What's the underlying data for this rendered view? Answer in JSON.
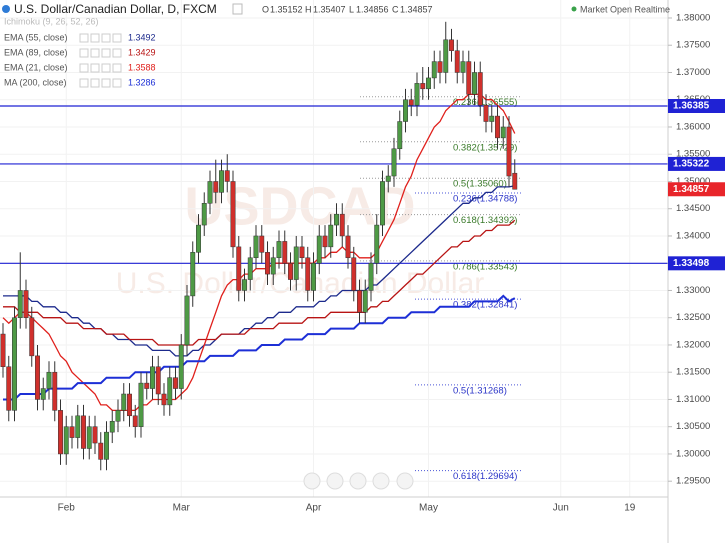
{
  "chart_data": {
    "type": "candlestick",
    "title": "U.S. Dollar/Canadian Dollar, D, FXCM",
    "status": "Market Open Realtime",
    "ohlc_labels": [
      "O",
      "H",
      "L",
      "C"
    ],
    "ichimoku_label": "Ichimoku (9, 26, 52, 26)",
    "watermark": [
      "USDCAD",
      "U.S. Dollar/Canadian Dollar"
    ],
    "up_color": "#4e9a45",
    "down_color": "#d0302c",
    "categories": [
      null,
      null,
      null,
      null,
      null,
      null,
      null,
      null,
      null,
      null,
      null,
      "Feb",
      null,
      null,
      null,
      null,
      null,
      null,
      null,
      null,
      null,
      null,
      null,
      null,
      null,
      null,
      null,
      null,
      null,
      null,
      null,
      "Mar",
      null,
      null,
      null,
      null,
      null,
      null,
      null,
      null,
      null,
      null,
      null,
      null,
      null,
      null,
      null,
      null,
      null,
      null,
      null,
      null,
      null,
      null,
      "Apr",
      null,
      null,
      null,
      null,
      null,
      null,
      null,
      null,
      null,
      null,
      null,
      null,
      null,
      null,
      null,
      null,
      null,
      null,
      null,
      "May",
      null,
      null,
      null,
      null,
      null,
      null,
      null,
      null,
      null,
      null,
      null,
      null,
      null,
      null,
      null,
      null,
      null,
      null,
      null,
      null,
      null,
      null,
      "Jun",
      null,
      null,
      null,
      null,
      null,
      null,
      null,
      null,
      null,
      null,
      null,
      "19"
    ],
    "open": [
      1.322,
      1.316,
      1.308,
      1.325,
      1.33,
      1.325,
      1.318,
      1.31,
      1.312,
      1.315,
      1.308,
      1.3,
      1.305,
      1.303,
      1.307,
      1.301,
      1.305,
      1.302,
      1.299,
      1.304,
      1.306,
      1.308,
      1.311,
      1.307,
      1.305,
      1.313,
      1.312,
      1.316,
      1.311,
      1.309,
      1.314,
      1.312,
      1.32,
      1.329,
      1.337,
      1.342,
      1.346,
      1.35,
      1.348,
      1.352,
      1.35,
      1.338,
      1.33,
      1.332,
      1.336,
      1.34,
      1.337,
      1.333,
      1.336,
      1.339,
      1.335,
      1.332,
      1.338,
      1.336,
      1.33,
      1.335,
      1.34,
      1.338,
      1.342,
      1.344,
      1.34,
      1.336,
      1.33,
      1.326,
      1.33,
      1.335,
      1.342,
      1.35,
      1.351,
      1.356,
      1.361,
      1.365,
      1.364,
      1.368,
      1.367,
      1.369,
      1.372,
      1.37,
      1.376,
      1.374,
      1.37,
      1.372,
      1.366,
      1.37,
      1.364,
      1.361,
      1.362,
      1.358,
      1.36,
      1.35152,
      null,
      null,
      null,
      null,
      null,
      null,
      null,
      null,
      null,
      null,
      null,
      null,
      null,
      null,
      null,
      null,
      null,
      null,
      null,
      null
    ],
    "high": [
      1.324,
      1.318,
      1.327,
      1.337,
      1.332,
      1.327,
      1.32,
      1.314,
      1.317,
      1.317,
      1.31,
      1.307,
      1.307,
      1.309,
      1.309,
      1.307,
      1.307,
      1.304,
      1.306,
      1.308,
      1.31,
      1.313,
      1.313,
      1.309,
      1.315,
      1.315,
      1.318,
      1.318,
      1.313,
      1.316,
      1.316,
      1.322,
      1.331,
      1.339,
      1.344,
      1.348,
      1.352,
      1.354,
      1.354,
      1.355,
      1.352,
      1.34,
      1.334,
      1.338,
      1.342,
      1.342,
      1.339,
      1.338,
      1.341,
      1.341,
      1.337,
      1.34,
      1.34,
      1.338,
      1.337,
      1.342,
      1.342,
      1.344,
      1.346,
      1.346,
      1.342,
      1.338,
      1.332,
      1.332,
      1.337,
      1.344,
      1.352,
      1.353,
      1.358,
      1.363,
      1.367,
      1.367,
      1.37,
      1.371,
      1.371,
      1.374,
      1.374,
      1.3793,
      1.378,
      1.376,
      1.374,
      1.374,
      1.372,
      1.372,
      1.366,
      1.364,
      1.364,
      1.362,
      1.362,
      1.35407,
      null,
      null,
      null,
      null,
      null,
      null,
      null,
      null,
      null,
      null,
      null,
      null,
      null,
      null,
      null,
      null,
      null,
      null,
      null,
      null
    ],
    "low": [
      1.314,
      1.306,
      1.306,
      1.323,
      1.323,
      1.316,
      1.308,
      1.308,
      1.31,
      1.306,
      1.298,
      1.298,
      1.301,
      1.301,
      1.299,
      1.299,
      1.3,
      1.297,
      1.297,
      1.302,
      1.304,
      1.306,
      1.305,
      1.303,
      1.303,
      1.31,
      1.31,
      1.309,
      1.307,
      1.307,
      1.31,
      1.31,
      1.318,
      1.327,
      1.335,
      1.34,
      1.344,
      1.346,
      1.346,
      1.348,
      1.336,
      1.328,
      1.328,
      1.33,
      1.334,
      1.335,
      1.331,
      1.331,
      1.334,
      1.333,
      1.33,
      1.33,
      1.334,
      1.328,
      1.328,
      1.333,
      1.336,
      1.336,
      1.34,
      1.338,
      1.334,
      1.328,
      1.324,
      1.324,
      1.328,
      1.333,
      1.34,
      1.348,
      1.349,
      1.354,
      1.359,
      1.362,
      1.362,
      1.365,
      1.365,
      1.367,
      1.368,
      1.368,
      1.372,
      1.368,
      1.368,
      1.364,
      1.364,
      1.362,
      1.359,
      1.359,
      1.356,
      1.356,
      1.349,
      1.34856,
      null,
      null,
      null,
      null,
      null,
      null,
      null,
      null,
      null,
      null,
      null,
      null,
      null,
      null,
      null,
      null,
      null,
      null,
      null,
      null
    ],
    "close": [
      1.316,
      1.308,
      1.325,
      1.33,
      1.325,
      1.318,
      1.31,
      1.312,
      1.315,
      1.308,
      1.3,
      1.305,
      1.303,
      1.307,
      1.301,
      1.305,
      1.302,
      1.299,
      1.304,
      1.306,
      1.308,
      1.311,
      1.307,
      1.305,
      1.313,
      1.312,
      1.316,
      1.311,
      1.309,
      1.314,
      1.312,
      1.32,
      1.329,
      1.337,
      1.342,
      1.346,
      1.35,
      1.348,
      1.352,
      1.35,
      1.338,
      1.33,
      1.332,
      1.336,
      1.34,
      1.337,
      1.333,
      1.336,
      1.339,
      1.335,
      1.332,
      1.338,
      1.336,
      1.33,
      1.335,
      1.34,
      1.338,
      1.342,
      1.344,
      1.34,
      1.336,
      1.33,
      1.326,
      1.33,
      1.335,
      1.342,
      1.35,
      1.351,
      1.356,
      1.361,
      1.365,
      1.364,
      1.368,
      1.367,
      1.369,
      1.372,
      1.37,
      1.376,
      1.374,
      1.37,
      1.372,
      1.366,
      1.37,
      1.364,
      1.361,
      1.362,
      1.358,
      1.36,
      1.351,
      1.34857,
      null,
      null,
      null,
      null,
      null,
      null,
      null,
      null,
      null,
      null,
      null,
      null,
      null,
      null,
      null,
      null,
      null,
      null,
      null,
      null
    ],
    "series": [
      {
        "name": "EMA (55, close)",
        "color": "#1c2a8c",
        "width": 1.3,
        "values": [
          1.329,
          1.329,
          1.329,
          1.329,
          1.329,
          1.328,
          1.328,
          1.327,
          1.327,
          1.327,
          1.326,
          1.326,
          1.325,
          1.325,
          1.324,
          1.324,
          1.323,
          1.323,
          1.322,
          1.322,
          1.321,
          1.321,
          1.321,
          1.32,
          1.32,
          1.32,
          1.319,
          1.319,
          1.319,
          1.319,
          1.318,
          1.318,
          1.318,
          1.319,
          1.319,
          1.32,
          1.32,
          1.321,
          1.322,
          1.322,
          1.322,
          1.322,
          1.323,
          1.323,
          1.324,
          1.324,
          1.325,
          1.325,
          1.326,
          1.326,
          1.326,
          1.327,
          1.327,
          1.327,
          1.327,
          1.328,
          1.328,
          1.329,
          1.329,
          1.33,
          1.33,
          1.33,
          1.33,
          1.33,
          1.331,
          1.331,
          1.332,
          1.333,
          1.334,
          1.335,
          1.336,
          1.337,
          1.338,
          1.339,
          1.34,
          1.341,
          1.342,
          1.343,
          1.344,
          1.345,
          1.346,
          1.346,
          1.347,
          1.347,
          1.348,
          1.348,
          1.349,
          1.349,
          1.349,
          1.3492,
          null,
          null,
          null,
          null,
          null,
          null,
          null,
          null,
          null,
          null,
          null,
          null,
          null,
          null,
          null,
          null,
          null,
          null,
          null,
          null
        ]
      },
      {
        "name": "EMA (89, close)",
        "color": "#b81414",
        "width": 1.3,
        "values": [
          1.327,
          1.327,
          1.327,
          1.326,
          1.326,
          1.326,
          1.326,
          1.325,
          1.325,
          1.325,
          1.325,
          1.324,
          1.324,
          1.324,
          1.323,
          1.323,
          1.323,
          1.323,
          1.322,
          1.322,
          1.322,
          1.322,
          1.321,
          1.321,
          1.321,
          1.321,
          1.321,
          1.32,
          1.32,
          1.32,
          1.32,
          1.32,
          1.32,
          1.32,
          1.321,
          1.321,
          1.321,
          1.321,
          1.322,
          1.322,
          1.322,
          1.322,
          1.322,
          1.323,
          1.323,
          1.323,
          1.323,
          1.323,
          1.324,
          1.324,
          1.324,
          1.324,
          1.324,
          1.325,
          1.325,
          1.325,
          1.325,
          1.326,
          1.326,
          1.326,
          1.326,
          1.326,
          1.326,
          1.326,
          1.327,
          1.327,
          1.328,
          1.328,
          1.329,
          1.33,
          1.331,
          1.332,
          1.333,
          1.333,
          1.334,
          1.335,
          1.336,
          1.337,
          1.338,
          1.338,
          1.339,
          1.339,
          1.34,
          1.34,
          1.341,
          1.341,
          1.342,
          1.342,
          1.342,
          1.3429,
          null,
          null,
          null,
          null,
          null,
          null,
          null,
          null,
          null,
          null,
          null,
          null,
          null,
          null,
          null,
          null,
          null,
          null,
          null,
          null
        ]
      },
      {
        "name": "EMA (21, close)",
        "color": "#e0201c",
        "width": 1.3,
        "values": [
          1.325,
          1.324,
          1.325,
          1.326,
          1.326,
          1.325,
          1.324,
          1.323,
          1.322,
          1.32,
          1.318,
          1.317,
          1.315,
          1.314,
          1.313,
          1.312,
          1.311,
          1.309,
          1.309,
          1.308,
          1.308,
          1.308,
          1.308,
          1.308,
          1.309,
          1.309,
          1.31,
          1.31,
          1.31,
          1.31,
          1.31,
          1.311,
          1.312,
          1.314,
          1.317,
          1.32,
          1.323,
          1.326,
          1.329,
          1.331,
          1.332,
          1.332,
          1.333,
          1.333,
          1.334,
          1.334,
          1.334,
          1.335,
          1.335,
          1.335,
          1.335,
          1.335,
          1.335,
          1.335,
          1.335,
          1.336,
          1.336,
          1.337,
          1.337,
          1.338,
          1.337,
          1.337,
          1.336,
          1.336,
          1.336,
          1.337,
          1.339,
          1.341,
          1.343,
          1.346,
          1.349,
          1.351,
          1.354,
          1.356,
          1.358,
          1.36,
          1.361,
          1.363,
          1.364,
          1.365,
          1.365,
          1.366,
          1.366,
          1.366,
          1.365,
          1.365,
          1.364,
          1.363,
          1.361,
          1.3588,
          null,
          null,
          null,
          null,
          null,
          null,
          null,
          null,
          null,
          null,
          null,
          null,
          null,
          null,
          null,
          null,
          null,
          null,
          null,
          null
        ]
      },
      {
        "name": "MA (200, close)",
        "color": "#1d2fd6",
        "width": 2,
        "values": [
          1.31,
          1.31,
          1.31,
          1.311,
          1.311,
          1.311,
          1.311,
          1.311,
          1.312,
          1.312,
          1.312,
          1.312,
          1.312,
          1.313,
          1.313,
          1.313,
          1.313,
          1.313,
          1.314,
          1.314,
          1.314,
          1.314,
          1.314,
          1.315,
          1.315,
          1.315,
          1.315,
          1.315,
          1.316,
          1.316,
          1.316,
          1.316,
          1.317,
          1.317,
          1.317,
          1.317,
          1.318,
          1.318,
          1.318,
          1.318,
          1.318,
          1.319,
          1.319,
          1.319,
          1.319,
          1.32,
          1.32,
          1.32,
          1.32,
          1.321,
          1.321,
          1.321,
          1.321,
          1.322,
          1.322,
          1.322,
          1.322,
          1.323,
          1.323,
          1.323,
          1.323,
          1.323,
          1.324,
          1.324,
          1.324,
          1.324,
          1.324,
          1.325,
          1.325,
          1.325,
          1.325,
          1.326,
          1.326,
          1.326,
          1.326,
          1.326,
          1.327,
          1.327,
          1.327,
          1.327,
          1.327,
          1.327,
          1.328,
          1.328,
          1.328,
          1.328,
          1.328,
          1.329,
          1.328,
          1.3286,
          null,
          null,
          null,
          null,
          null,
          null,
          null,
          null,
          null,
          null,
          null,
          null,
          null,
          null,
          null,
          null,
          null,
          null,
          null,
          null
        ]
      }
    ],
    "fib_sets": [
      {
        "color": "#3a7a2a",
        "line_color": "#9a9a9a",
        "levels": [
          {
            "label": "0.236(1.36555)",
            "value": 1.36555
          },
          {
            "label": "0.382(1.35729)",
            "value": 1.35729
          },
          {
            "label": "0.5(1.35060)",
            "value": 1.3506
          },
          {
            "label": "0.618(1.34392)",
            "value": 1.34392
          },
          {
            "label": "0.786(1.33543)",
            "value": 1.33543
          }
        ]
      },
      {
        "color": "#2b35c8",
        "line_color": "#4a55d8",
        "levels": [
          {
            "label": "0.236(1.34788)",
            "value": 1.34788
          },
          {
            "label": "0.382(1.32841)",
            "value": 1.32841
          },
          {
            "label": "0.5(1.31268)",
            "value": 1.31268
          },
          {
            "label": "0.618(1.29694)",
            "value": 1.29694
          }
        ]
      }
    ],
    "hlines": [
      1.36385,
      1.35322,
      1.33498
    ],
    "hline_color": "#1f22d4",
    "last_price_color": "#e8252a",
    "ylim": [
      1.2921,
      1.3833
    ],
    "yticks": [
      {
        "value": 1.38,
        "label": "1.38000"
      },
      {
        "value": 1.375,
        "label": "1.37500"
      },
      {
        "value": 1.37,
        "label": "1.37000"
      },
      {
        "value": 1.365,
        "label": "1.36500"
      },
      {
        "value": 1.36,
        "label": "1.36000"
      },
      {
        "value": 1.355,
        "label": "1.35500"
      },
      {
        "value": 1.35,
        "label": "1.35000"
      },
      {
        "value": 1.345,
        "label": "1.34500"
      },
      {
        "value": 1.34,
        "label": "1.34000"
      },
      {
        "value": 1.335,
        "label": "1.33500"
      },
      {
        "value": 1.33,
        "label": "1.33000"
      },
      {
        "value": 1.325,
        "label": "1.32500"
      },
      {
        "value": 1.32,
        "label": "1.32000"
      },
      {
        "value": 1.315,
        "label": "1.31500"
      },
      {
        "value": 1.31,
        "label": "1.31000"
      },
      {
        "value": 1.305,
        "label": "1.30500"
      },
      {
        "value": 1.3,
        "label": "1.30000"
      },
      {
        "value": 1.295,
        "label": "1.29500"
      }
    ],
    "grid": true
  }
}
